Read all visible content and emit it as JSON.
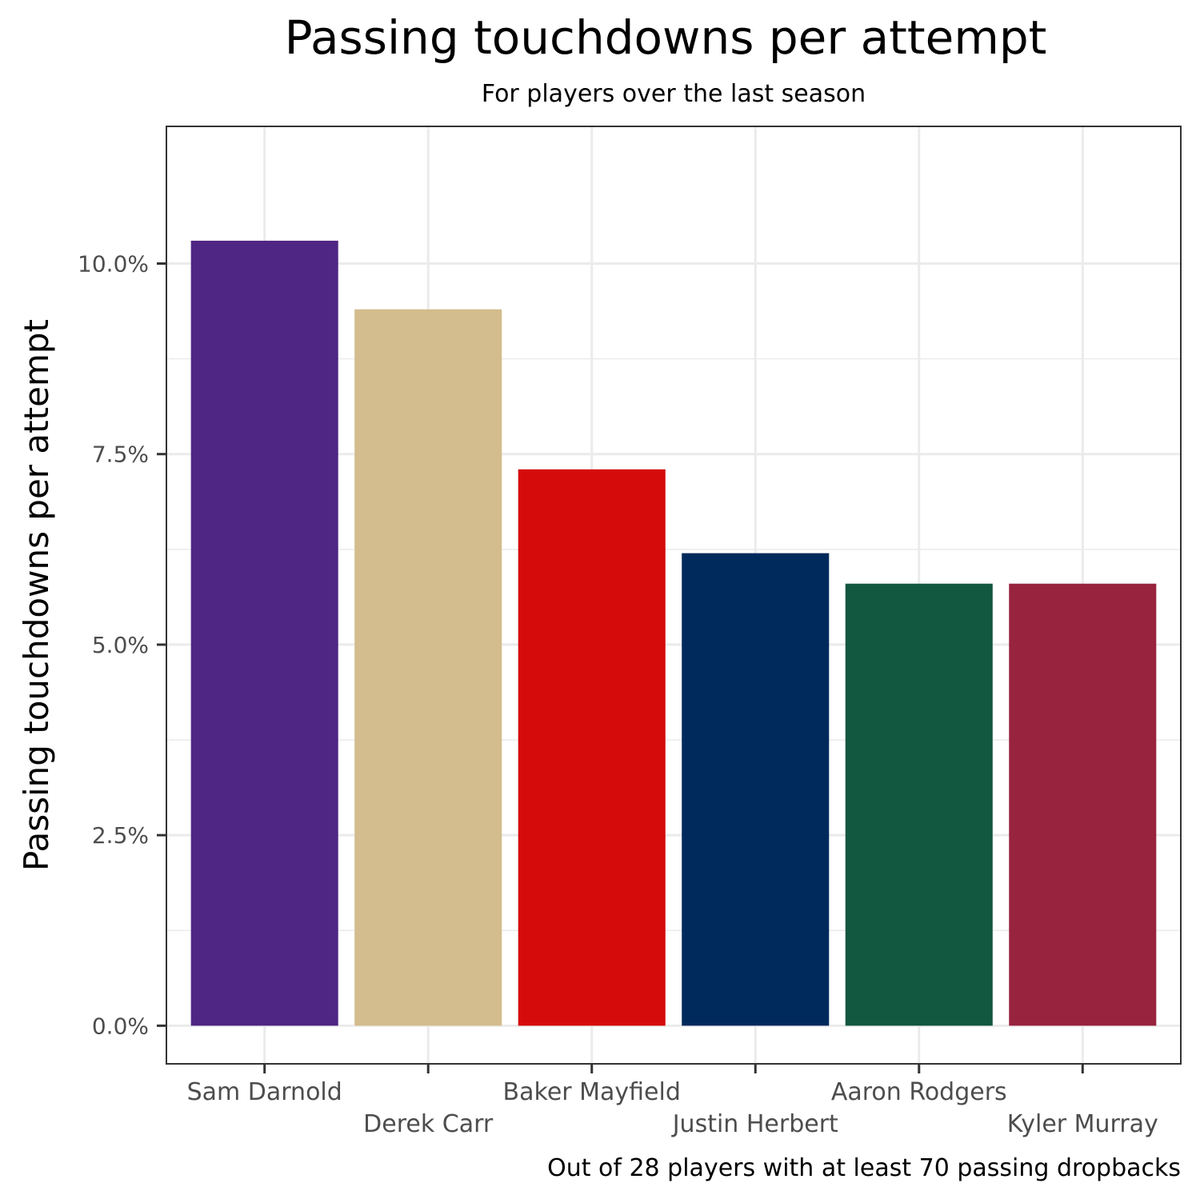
{
  "chart_data": {
    "type": "bar",
    "title": "Passing touchdowns per attempt",
    "subtitle": "For players over the last season",
    "ylabel": "Passing touchdowns per attempt",
    "xlabel": "",
    "caption": "Out of 28 players with at least 70 passing dropbacks",
    "categories": [
      "Sam Darnold",
      "Derek Carr",
      "Baker Mayfield",
      "Justin Herbert",
      "Aaron Rodgers",
      "Kyler Murray"
    ],
    "values": [
      10.3,
      9.4,
      7.3,
      6.2,
      5.8,
      5.8
    ],
    "colors": [
      "#4f2683",
      "#d3bc8d",
      "#d50a0a",
      "#002a5c",
      "#125740",
      "#97233f"
    ],
    "y_ticks": [
      0,
      2.5,
      5,
      7.5,
      10
    ],
    "y_tick_labels": [
      "0.0%",
      "2.5%",
      "5.0%",
      "7.5%",
      "10.0%"
    ],
    "ylim": [
      -0.5,
      11.8
    ],
    "grid": true,
    "legend": "none"
  },
  "style": {
    "panel_border": "#333333",
    "grid_color": "#ebebeb",
    "tick_label_color": "#4d4d4d",
    "text_color": "#000000"
  }
}
